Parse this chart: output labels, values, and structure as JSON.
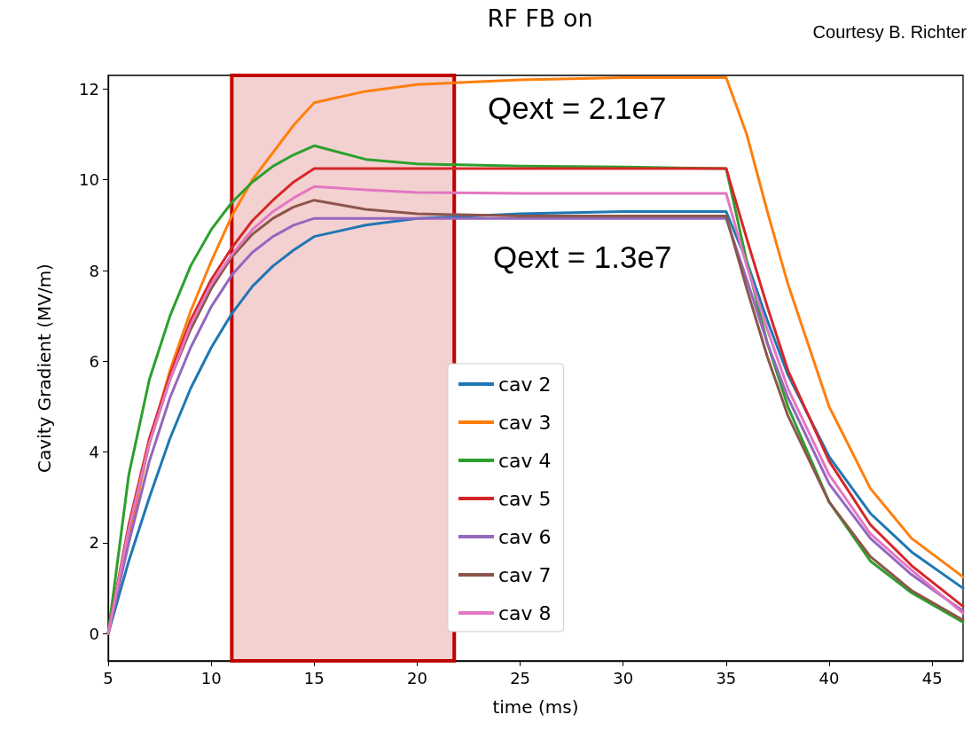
{
  "chart_data": {
    "type": "line",
    "title": "RF FB on",
    "xlabel": "time (ms)",
    "ylabel": "Cavity Gradient (MV/m)",
    "x": [
      5,
      6,
      7,
      8,
      9,
      10,
      11,
      12,
      13,
      14,
      15,
      17.5,
      20,
      25,
      30,
      35,
      36,
      37,
      38,
      40,
      42,
      44,
      46.5
    ],
    "series": [
      {
        "name": "cav 2",
        "color": "#1f77b4",
        "values": [
          0,
          1.6,
          3.0,
          4.3,
          5.4,
          6.3,
          7.05,
          7.65,
          8.1,
          8.45,
          8.75,
          9.0,
          9.15,
          9.25,
          9.3,
          9.3,
          8.2,
          6.9,
          5.7,
          3.9,
          2.65,
          1.8,
          1.0
        ]
      },
      {
        "name": "cav 3",
        "color": "#ff7f0e",
        "values": [
          null,
          2.1,
          4.2,
          5.8,
          7.1,
          8.2,
          9.2,
          10.0,
          10.6,
          11.2,
          11.7,
          11.95,
          12.1,
          12.2,
          12.25,
          12.25,
          11.0,
          9.3,
          7.7,
          5.0,
          3.2,
          2.1,
          1.25
        ]
      },
      {
        "name": "cav 4",
        "color": "#2ca02c",
        "values": [
          0,
          3.5,
          5.6,
          7.0,
          8.1,
          8.9,
          9.5,
          9.95,
          10.3,
          10.55,
          10.75,
          10.45,
          10.35,
          10.3,
          10.28,
          10.25,
          8.2,
          6.4,
          5.0,
          2.9,
          1.6,
          0.9,
          0.25
        ]
      },
      {
        "name": "cav 5",
        "color": "#d62728",
        "values": [
          0,
          2.4,
          4.3,
          5.7,
          6.9,
          7.8,
          8.5,
          9.1,
          9.55,
          9.95,
          10.25,
          10.25,
          10.25,
          10.25,
          10.25,
          10.25,
          8.7,
          7.2,
          5.8,
          3.8,
          2.4,
          1.5,
          0.6
        ]
      },
      {
        "name": "cav 6",
        "color": "#9467bd",
        "values": [
          0,
          2.0,
          3.8,
          5.2,
          6.3,
          7.2,
          7.9,
          8.4,
          8.75,
          9.0,
          9.15,
          9.15,
          9.15,
          9.15,
          9.15,
          9.15,
          7.8,
          6.4,
          5.2,
          3.3,
          2.1,
          1.3,
          0.5
        ]
      },
      {
        "name": "cav 7",
        "color": "#8c564b",
        "values": [
          0,
          2.3,
          4.2,
          5.6,
          6.7,
          7.6,
          8.3,
          8.8,
          9.15,
          9.4,
          9.55,
          9.35,
          9.25,
          9.2,
          9.2,
          9.2,
          7.6,
          6.1,
          4.8,
          2.9,
          1.7,
          0.95,
          0.3
        ]
      },
      {
        "name": "cav 8",
        "color": "#e377c2",
        "values": [
          0,
          2.3,
          4.2,
          5.6,
          6.8,
          7.7,
          8.35,
          8.9,
          9.3,
          9.6,
          9.85,
          9.78,
          9.72,
          9.7,
          9.7,
          9.7,
          8.1,
          6.7,
          5.4,
          3.5,
          2.2,
          1.4,
          0.45
        ]
      }
    ],
    "xlim": [
      5,
      46.5
    ],
    "xticks": [
      5,
      10,
      15,
      20,
      25,
      30,
      35,
      40,
      45
    ],
    "ylim": [
      -0.6,
      12.3
    ],
    "yticks": [
      0,
      2,
      4,
      6,
      8,
      10,
      12
    ],
    "bands": [
      {
        "axis": "x",
        "from": 11,
        "to": 21.8,
        "color": "#c00000"
      }
    ],
    "annotations": [
      "Qext = 2.1e7",
      "Qext = 1.3e7",
      "Courtesy B. Richter"
    ],
    "legend": "bottom",
    "grid": false,
    "marker": "none",
    "line_style": "solid"
  }
}
